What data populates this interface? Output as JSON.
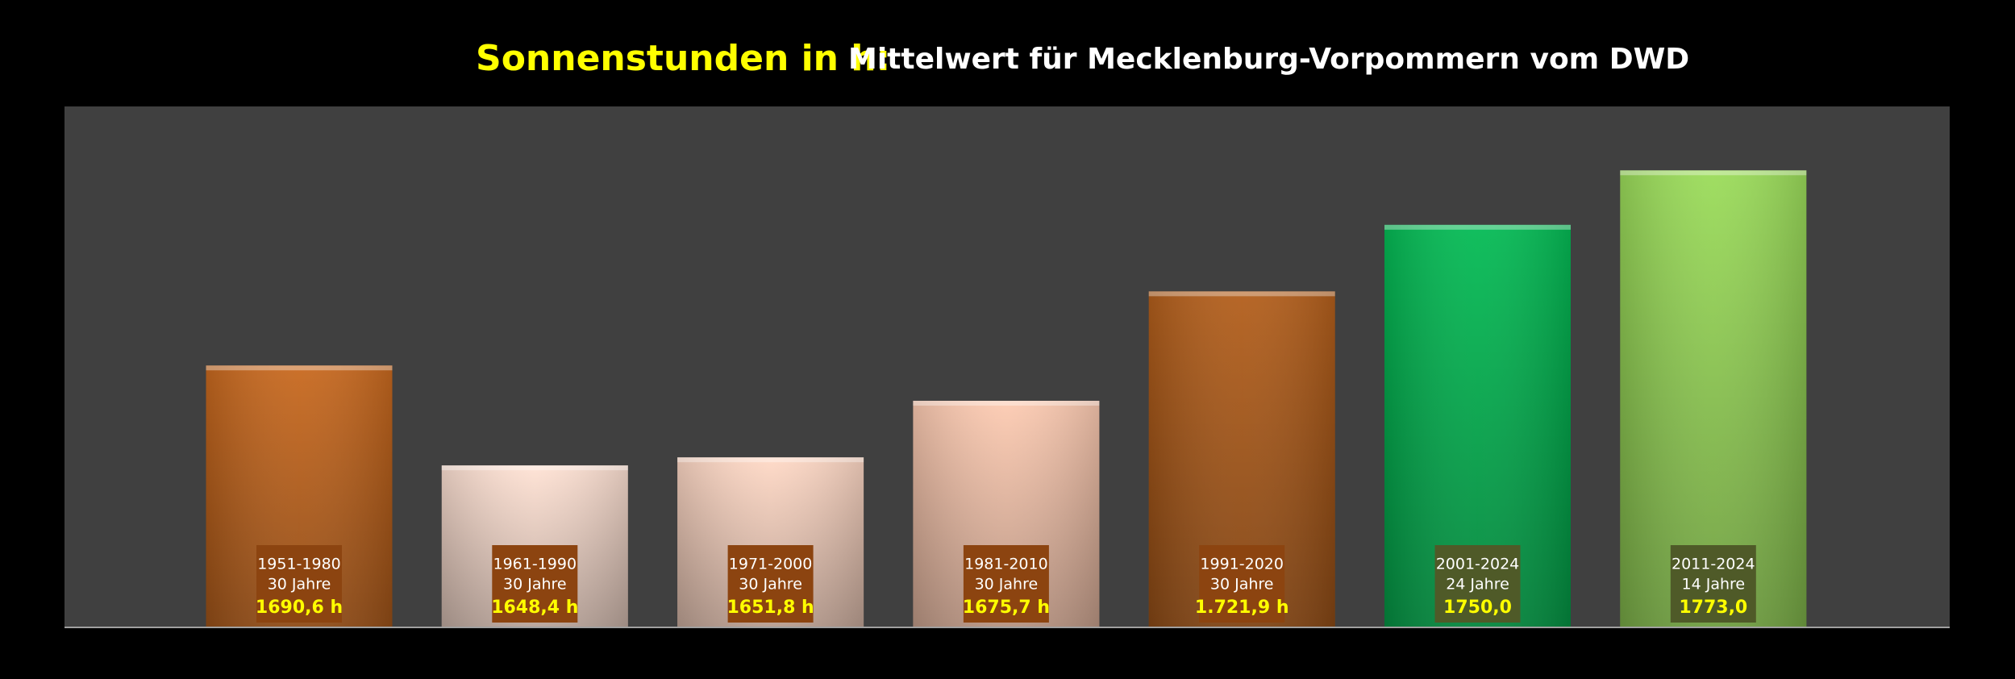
{
  "chart_data": {
    "type": "bar",
    "title": "Sonnenstunden in h:",
    "subtitle": "Mittelwert für Mecklenburg-Vorpommern vom DWD",
    "categories": [
      "1951-1980",
      "1961-1990",
      "1971-2000",
      "1981-2010",
      "1991-2020",
      "2001-2024",
      "2011-2024"
    ],
    "periods": [
      "30 Jahre",
      "30 Jahre",
      "30 Jahre",
      "30 Jahre",
      "30 Jahre",
      "24 Jahre",
      "14 Jahre"
    ],
    "values": [
      1690.6,
      1648.4,
      1651.8,
      1675.7,
      1721.9,
      1750.0,
      1773.0
    ],
    "value_labels": [
      "1690,6 h",
      "1648,4 h",
      "1651,8 h",
      "1675,7 h",
      "1.721,9 h",
      "1750,0",
      "1773,0"
    ],
    "colors": [
      "#c8691f",
      "#ffe2d4",
      "#ffd9c6",
      "#fdcbb2",
      "#b35f1c",
      "#05bb55",
      "#9bdc5a"
    ],
    "label_box_colors": [
      "#8c4410",
      "#8c4410",
      "#8c4410",
      "#8c4410",
      "#8c4410",
      "#4f5a28",
      "#4f5a28"
    ],
    "ylim": [
      1580,
      1800
    ]
  }
}
